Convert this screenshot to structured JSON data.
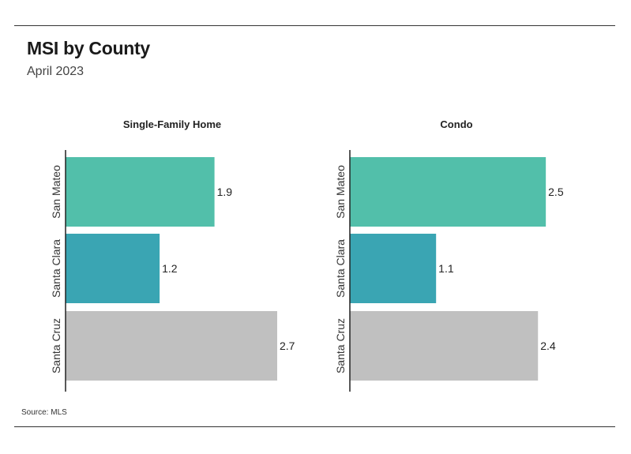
{
  "header": {
    "title": "MSI by County",
    "subtitle": "April 2023"
  },
  "footer": {
    "source": "Source: MLS"
  },
  "colors": {
    "San Mateo": "#52bfaa",
    "Santa Clara": "#3aa5b3",
    "Santa Cruz": "#c0c0c0"
  },
  "chart_data": [
    {
      "type": "bar",
      "orientation": "horizontal",
      "title": "Single-Family Home",
      "categories": [
        "San Mateo",
        "Santa Clara",
        "Santa Cruz"
      ],
      "values": [
        1.9,
        1.2,
        2.7
      ],
      "xlim": [
        0,
        2.9
      ]
    },
    {
      "type": "bar",
      "orientation": "horizontal",
      "title": "Condo",
      "categories": [
        "San Mateo",
        "Santa Clara",
        "Santa Cruz"
      ],
      "values": [
        2.5,
        1.1,
        2.4
      ],
      "xlim": [
        0,
        2.9
      ]
    }
  ]
}
